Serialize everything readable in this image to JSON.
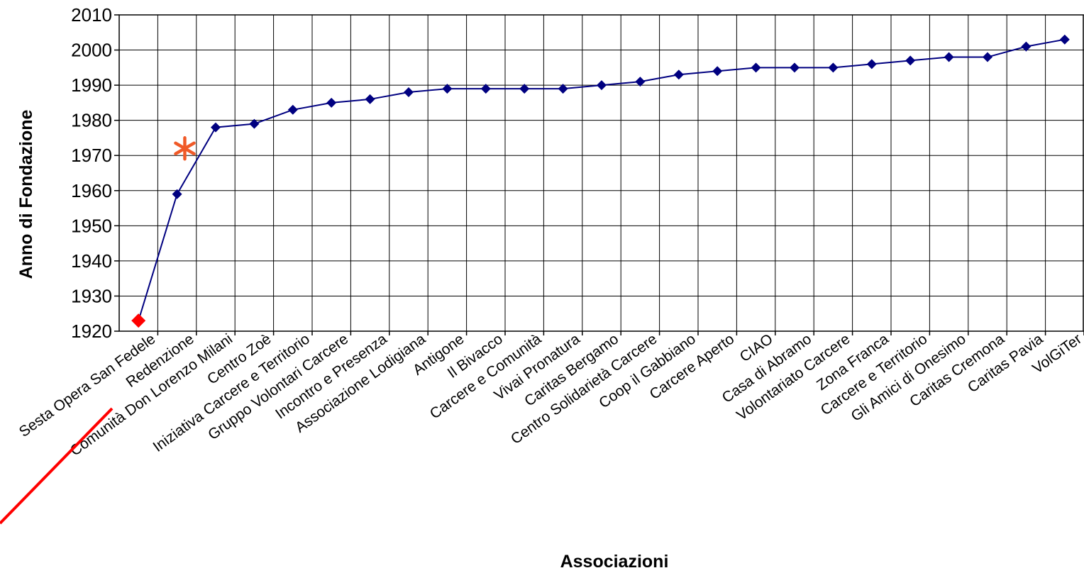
{
  "chart_data": {
    "type": "line",
    "title": "",
    "xlabel": "Associazioni",
    "ylabel": "Anno di Fondazione",
    "ylim": [
      1920,
      2010
    ],
    "yticks": [
      1920,
      1930,
      1940,
      1950,
      1960,
      1970,
      1980,
      1990,
      2000,
      2010
    ],
    "grid": true,
    "legend": "none",
    "categories": [
      "Sesta Opera San Fedele",
      "Redenzione",
      "Comunità Don Lorenzo Milani",
      "Centro Zoè",
      "Iniziativa Carcere e Territorio",
      "Gruppo Volontari Carcere",
      "Incontro e Presenza",
      "Associazione Lodigiana",
      "Antigone",
      "Il Bivacco",
      "Carcere e Comunità",
      "Vivai Pronatura",
      "Caritas Bergamo",
      "Centro Solidarietà Carcere",
      "Coop il Gabbiano",
      "Carcere Aperto",
      "CIAO",
      "Casa di Abramo",
      "Volontariato Carcere",
      "Zona Franca",
      "Carcere e Territorio",
      "Gli Amici di Onesimo",
      "Caritas Cremona",
      "Caritas Pavia",
      "VolGiTer"
    ],
    "series": [
      {
        "values": [
          1923,
          1959,
          1978,
          1979,
          1983,
          1985,
          1986,
          1988,
          1989,
          1989,
          1989,
          1989,
          1990,
          1991,
          1993,
          1994,
          1995,
          1995,
          1995,
          1996,
          1997,
          1998,
          1998,
          2001,
          2003
        ]
      }
    ],
    "annotations": [
      {
        "type": "asterisk",
        "x_position": 1.7,
        "y": 1972
      },
      {
        "type": "highlighted-point",
        "category_index": 0,
        "y": 1923
      },
      {
        "type": "underline-stroke",
        "target_category_index": 0
      }
    ],
    "colors": {
      "line": "#000080",
      "marker": "#000080",
      "highlight_marker": "#ff0000",
      "asterisk": "#f05a28",
      "underline": "#ff0000",
      "grid": "#000000"
    }
  }
}
